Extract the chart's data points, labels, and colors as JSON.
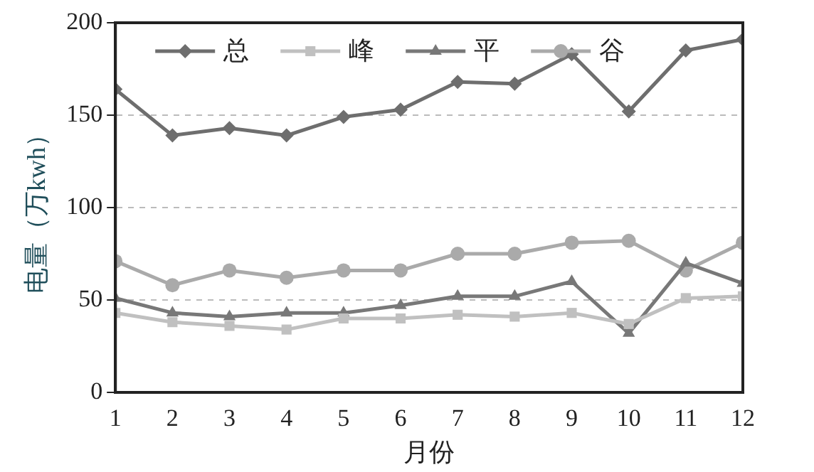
{
  "chart_data": {
    "type": "line",
    "xlabel": "月份",
    "ylabel": "电量（万kwh）",
    "x": [
      1,
      2,
      3,
      4,
      5,
      6,
      7,
      8,
      9,
      10,
      11,
      12
    ],
    "xlim": [
      1,
      12
    ],
    "xticks": [
      1,
      2,
      3,
      4,
      5,
      6,
      7,
      8,
      9,
      10,
      11,
      12
    ],
    "ylim": [
      0,
      200
    ],
    "yticks": [
      0,
      50,
      100,
      150,
      200
    ],
    "grid": "y",
    "legend": "top left",
    "line_style": "solid",
    "series": [
      {
        "name": "总",
        "color": "#6e6e6e",
        "marker": "diamond",
        "values": [
          164,
          139,
          143,
          139,
          149,
          153,
          168,
          167,
          183,
          152,
          185,
          191
        ]
      },
      {
        "name": "峰",
        "color": "#c0c0c0",
        "marker": "square",
        "values": [
          43,
          38,
          36,
          34,
          40,
          40,
          42,
          41,
          43,
          37,
          51,
          52
        ]
      },
      {
        "name": "平",
        "color": "#787878",
        "marker": "triangle",
        "values": [
          51,
          43,
          41,
          43,
          43,
          47,
          52,
          52,
          60,
          32,
          70,
          59
        ]
      },
      {
        "name": "谷",
        "color": "#aaaaaa",
        "marker": "circle",
        "values": [
          71,
          58,
          66,
          62,
          66,
          66,
          75,
          75,
          81,
          82,
          66,
          81
        ]
      }
    ]
  }
}
